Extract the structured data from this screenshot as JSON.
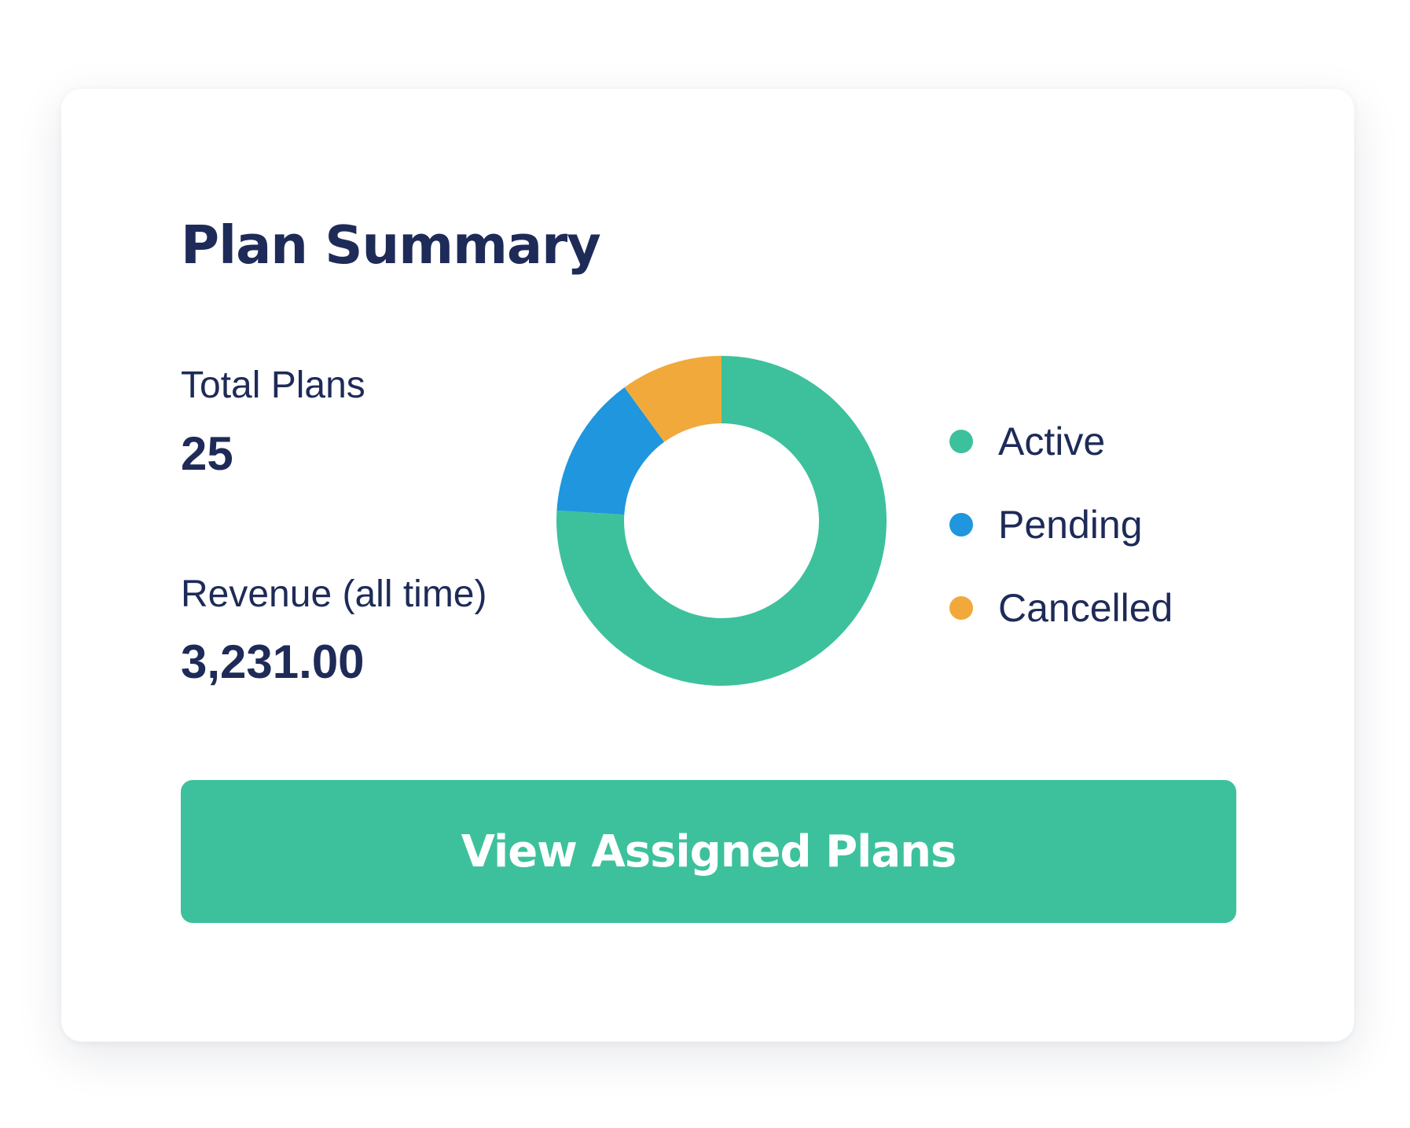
{
  "card": {
    "title": "Plan Summary",
    "total_plans": {
      "label": "Total Plans",
      "value": "25"
    },
    "revenue": {
      "label": "Revenue (all time)",
      "value": "3,231.00"
    },
    "cta": {
      "label": "View Assigned Plans"
    }
  },
  "legend": [
    {
      "label": "Active",
      "color": "#3dc19c",
      "icon": "dot-icon"
    },
    {
      "label": "Pending",
      "color": "#1f96dd",
      "icon": "dot-icon"
    },
    {
      "label": "Cancelled",
      "color": "#f2a93b",
      "icon": "dot-icon"
    }
  ],
  "chart_data": {
    "type": "pie",
    "style": "donut",
    "categories": [
      "Active",
      "Pending",
      "Cancelled"
    ],
    "values": [
      19,
      3.5,
      2.5
    ],
    "colors": [
      "#3dc19c",
      "#1f96dd",
      "#f2a93b"
    ]
  }
}
